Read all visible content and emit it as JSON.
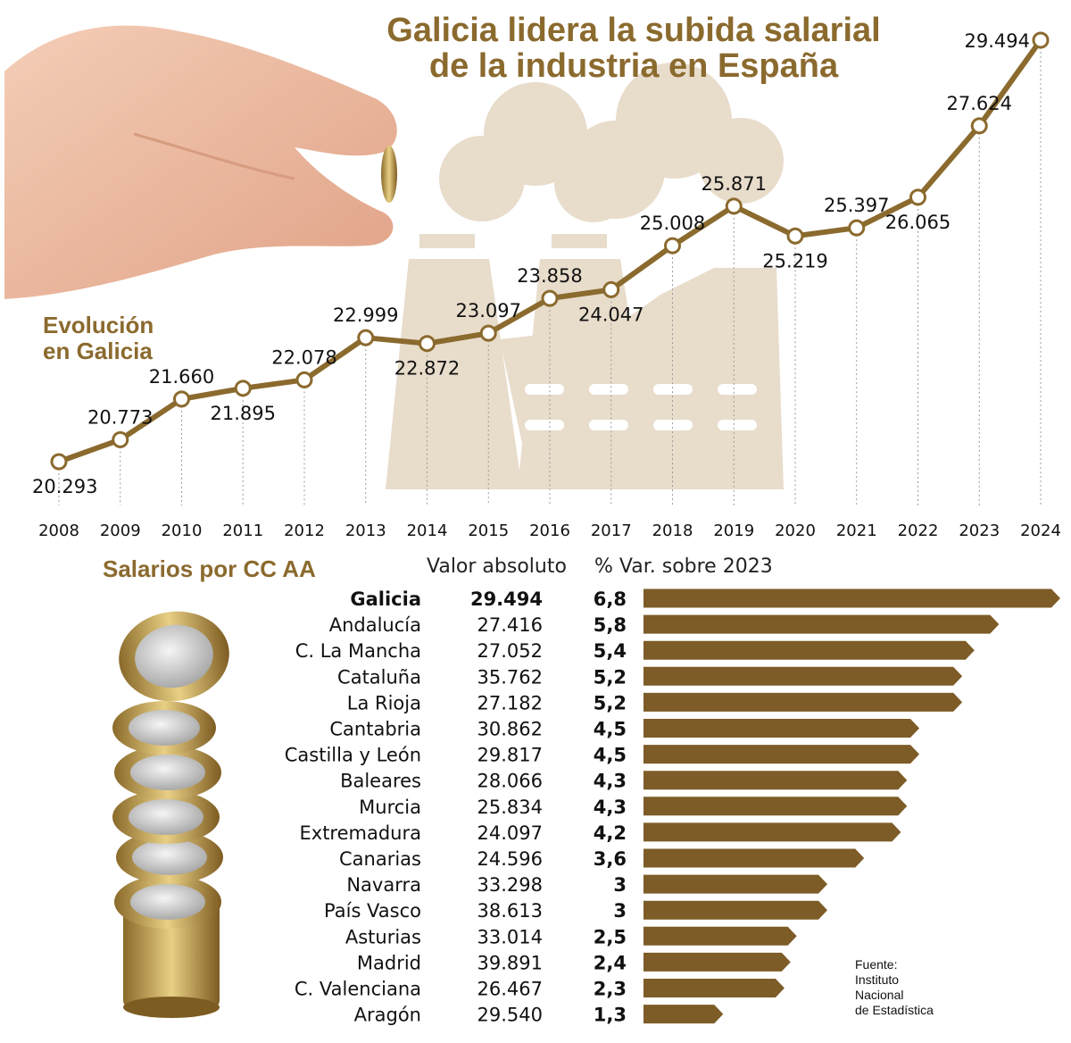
{
  "title_line1": "Galicia lidera la subida salarial",
  "title_line2": "de la industria en España",
  "subtitle_line1": "Evolución",
  "subtitle_line2": "en Galicia",
  "regions_title": "Salarios por CC AA",
  "col_absolute": "Valor absoluto",
  "col_variation": "% Var. sobre 2023",
  "source": [
    "Fuente:",
    "Instituto",
    "Nacional",
    "de Estadística"
  ],
  "colors": {
    "accent": "#8b6a2e",
    "bar": "#7d5c27",
    "silhouette": "#e8dccb",
    "title": "#8b6a2e"
  },
  "chart_data": [
    {
      "type": "line",
      "x": [
        "2008",
        "2009",
        "2010",
        "2011",
        "2012",
        "2013",
        "2014",
        "2015",
        "2016",
        "2017",
        "2018",
        "2019",
        "2020",
        "2021",
        "2022",
        "2023",
        "2024"
      ],
      "series": [
        {
          "values": [
            20293,
            20773,
            21660,
            21895,
            22078,
            22999,
            22872,
            23097,
            23858,
            24047,
            25008,
            25871,
            25219,
            25397,
            26065,
            27624,
            29494
          ],
          "labels": [
            "20.293",
            "20.773",
            "21.660",
            "21.895",
            "22.078",
            "22.999",
            "22.872",
            "23.097",
            "23.858",
            "24.047",
            "25.008",
            "25.871",
            "25.219",
            "25.397",
            "26.065",
            "27.624",
            "29.494"
          ]
        }
      ],
      "grid": "vertical dotted lines at each year"
    },
    {
      "type": "bar",
      "orientation": "horizontal",
      "categories": [
        "Galicia",
        "Andalucía",
        "C. La Mancha",
        "Cataluña",
        "La Rioja",
        "Cantabria",
        "Castilla y León",
        "Baleares",
        "Murcia",
        "Extremadura",
        "Canarias",
        "Navarra",
        "País Vasco",
        "Asturias",
        "Madrid",
        "C. Valenciana",
        "Aragón"
      ],
      "absolute_labels": [
        "29.494",
        "27.416",
        "27.052",
        "35.762",
        "27.182",
        "30.862",
        "29.817",
        "28.066",
        "25.834",
        "24.097",
        "24.596",
        "33.298",
        "38.613",
        "33.014",
        "39.891",
        "26.467",
        "29.540"
      ],
      "variation_labels": [
        "6,8",
        "5,8",
        "5,4",
        "5,2",
        "5,2",
        "4,5",
        "4,5",
        "4,3",
        "4,3",
        "4,2",
        "3,6",
        "3",
        "3",
        "2,5",
        "2,4",
        "2,3",
        "1,3"
      ],
      "values": [
        6.8,
        5.8,
        5.4,
        5.2,
        5.2,
        4.5,
        4.5,
        4.3,
        4.3,
        4.2,
        3.6,
        3,
        3,
        2.5,
        2.4,
        2.3,
        1.3
      ],
      "highlight": "Galicia",
      "xlim": [
        0,
        6.8
      ]
    }
  ]
}
